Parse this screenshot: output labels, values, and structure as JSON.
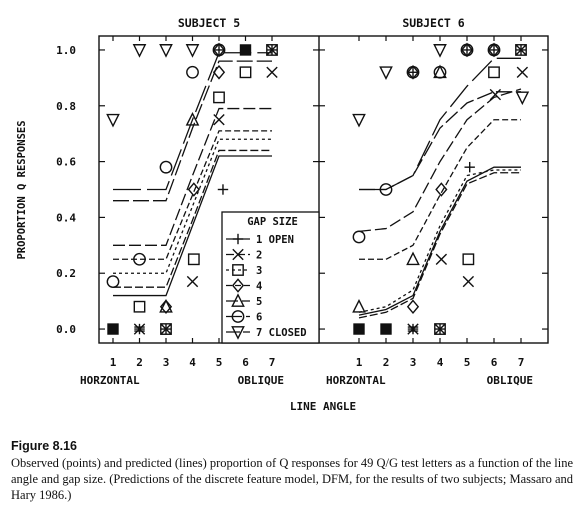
{
  "chart_data": {
    "type": "line",
    "xlabel": "LINE ANGLE",
    "ylabel": "PROPORTION Q RESPONSES",
    "x_ticks": [
      1,
      2,
      3,
      4,
      5,
      6,
      7
    ],
    "x_end_labels": {
      "left": "HORZONTAL",
      "right": "OBLIQUE"
    },
    "y_ticks": [
      "0.0",
      "0.2",
      "0.4",
      "0.6",
      "0.8",
      "1.0"
    ],
    "xlim": [
      0,
      8
    ],
    "ylim": [
      -0.05,
      1.05
    ],
    "legend": {
      "title": "GAP SIZE",
      "placement": "inside-bottom-right of left panel",
      "entries": [
        {
          "label": "1 OPEN",
          "marker": "plus",
          "dash": ""
        },
        {
          "label": "2",
          "marker": "x",
          "dash": "8,3"
        },
        {
          "label": "3",
          "marker": "square",
          "dash": "3,3"
        },
        {
          "label": "4",
          "marker": "diamond",
          "dash": "6,3"
        },
        {
          "label": "5",
          "marker": "triangle-up",
          "dash": "12,4"
        },
        {
          "label": "6",
          "marker": "circle",
          "dash": "16,4"
        },
        {
          "label": "7 CLOSED",
          "marker": "triangle-down",
          "dash": "28,6"
        }
      ]
    },
    "panels": [
      {
        "title": "SUBJECT 5",
        "predicted_lines": [
          {
            "gap": 1,
            "y": [
              0.12,
              0.12,
              0.12,
              0.37,
              0.62,
              0.62,
              0.62
            ]
          },
          {
            "gap": 2,
            "y": [
              0.15,
              0.15,
              0.15,
              0.39,
              0.64,
              0.64,
              0.64
            ]
          },
          {
            "gap": 3,
            "y": [
              0.2,
              0.2,
              0.2,
              0.44,
              0.68,
              0.68,
              0.68
            ]
          },
          {
            "gap": 4,
            "y": [
              0.25,
              0.25,
              0.25,
              0.48,
              0.71,
              0.71,
              0.71
            ]
          },
          {
            "gap": 5,
            "y": [
              0.3,
              0.3,
              0.3,
              0.55,
              0.79,
              0.79,
              0.79
            ]
          },
          {
            "gap": 6,
            "y": [
              0.46,
              0.46,
              0.46,
              0.72,
              0.96,
              0.96,
              0.96
            ]
          },
          {
            "gap": 7,
            "y": [
              0.5,
              0.5,
              0.5,
              0.75,
              0.99,
              0.99,
              0.99
            ]
          }
        ],
        "observed_points": [
          {
            "gap": 1,
            "x": 5.15,
            "y": 0.5
          },
          {
            "gap": 2,
            "x": 4.0,
            "y": 0.17
          },
          {
            "gap": 2,
            "x": 5.0,
            "y": 0.75
          },
          {
            "gap": 2,
            "x": 7.0,
            "y": 0.92
          },
          {
            "gap": 3,
            "x": 2.0,
            "y": 0.08
          },
          {
            "gap": 3,
            "x": 4.05,
            "y": 0.25
          },
          {
            "gap": 3,
            "x": 5.0,
            "y": 0.83
          },
          {
            "gap": 3,
            "x": 6.0,
            "y": 0.92
          },
          {
            "gap": 4,
            "x": 3.0,
            "y": 0.08
          },
          {
            "gap": 4,
            "x": 4.05,
            "y": 0.5
          },
          {
            "gap": 4,
            "x": 5.0,
            "y": 0.92
          },
          {
            "gap": 5,
            "x": 3.0,
            "y": 0.08
          },
          {
            "gap": 5,
            "x": 4.0,
            "y": 0.75
          },
          {
            "gap": 6,
            "x": 1.0,
            "y": 0.17
          },
          {
            "gap": 6,
            "x": 2.0,
            "y": 0.25
          },
          {
            "gap": 6,
            "x": 3.0,
            "y": 0.58
          },
          {
            "gap": 6,
            "x": 4.0,
            "y": 0.92
          },
          {
            "gap": 7,
            "x": 1.0,
            "y": 0.75
          },
          {
            "gap": 7,
            "x": 2.0,
            "y": 1.0
          },
          {
            "gap": 7,
            "x": 3.0,
            "y": 1.0
          },
          {
            "gap": 7,
            "x": 4.0,
            "y": 1.0
          }
        ],
        "overlap_points": [
          {
            "x": 1.0,
            "y": 0.0,
            "style": "filled-square"
          },
          {
            "x": 2.0,
            "y": 0.0,
            "style": "overlap-x"
          },
          {
            "x": 3.0,
            "y": 0.0,
            "style": "overlap-cross"
          },
          {
            "x": 5.0,
            "y": 1.0,
            "style": "overlap-circle"
          },
          {
            "x": 6.0,
            "y": 1.0,
            "style": "filled-square"
          },
          {
            "x": 7.0,
            "y": 1.0,
            "style": "overlap-square"
          }
        ]
      },
      {
        "title": "SUBJECT 6",
        "predicted_lines": [
          {
            "gap": 1,
            "y": [
              0.05,
              0.07,
              0.12,
              0.35,
              0.53,
              0.58,
              0.58
            ]
          },
          {
            "gap": 2,
            "y": [
              0.04,
              0.06,
              0.11,
              0.34,
              0.52,
              0.56,
              0.56
            ]
          },
          {
            "gap": 3,
            "y": [
              0.06,
              0.08,
              0.14,
              0.37,
              0.55,
              0.57,
              0.57
            ]
          },
          {
            "gap": 4,
            "y": [
              0.25,
              0.25,
              0.3,
              0.48,
              0.65,
              0.75,
              0.75
            ]
          },
          {
            "gap": 5,
            "y": [
              0.35,
              0.36,
              0.42,
              0.6,
              0.75,
              0.83,
              0.86
            ]
          },
          {
            "gap": 6,
            "y": [
              0.5,
              0.5,
              0.55,
              0.72,
              0.81,
              0.85,
              0.85
            ]
          },
          {
            "gap": 7,
            "y": [
              0.5,
              0.5,
              0.55,
              0.75,
              0.87,
              0.97,
              0.97
            ]
          }
        ],
        "observed_points": [
          {
            "gap": 1,
            "x": 5.1,
            "y": 0.58
          },
          {
            "gap": 2,
            "x": 4.05,
            "y": 0.25
          },
          {
            "gap": 2,
            "x": 5.05,
            "y": 0.17
          },
          {
            "gap": 2,
            "x": 6.05,
            "y": 0.84
          },
          {
            "gap": 2,
            "x": 7.05,
            "y": 0.92
          },
          {
            "gap": 3,
            "x": 5.05,
            "y": 0.25
          },
          {
            "gap": 3,
            "x": 6.0,
            "y": 0.92
          },
          {
            "gap": 4,
            "x": 3.0,
            "y": 0.08
          },
          {
            "gap": 4,
            "x": 4.05,
            "y": 0.5
          },
          {
            "gap": 5,
            "x": 1.0,
            "y": 0.08
          },
          {
            "gap": 5,
            "x": 3.0,
            "y": 0.25
          },
          {
            "gap": 6,
            "x": 1.0,
            "y": 0.33
          },
          {
            "gap": 6,
            "x": 2.0,
            "y": 0.5
          },
          {
            "gap": 7,
            "x": 1.0,
            "y": 0.75
          },
          {
            "gap": 7,
            "x": 7.05,
            "y": 0.83
          },
          {
            "gap": 7,
            "x": 2.0,
            "y": 0.92
          },
          {
            "gap": 7,
            "x": 4.0,
            "y": 1.0
          }
        ],
        "overlap_points": [
          {
            "x": 1.0,
            "y": 0.0,
            "style": "filled-square"
          },
          {
            "x": 2.0,
            "y": 0.0,
            "style": "filled-square"
          },
          {
            "x": 3.0,
            "y": 0.0,
            "style": "overlap-x"
          },
          {
            "x": 4.0,
            "y": 0.0,
            "style": "overlap-cross"
          },
          {
            "x": 3.0,
            "y": 0.92,
            "style": "overlap-circle"
          },
          {
            "x": 4.0,
            "y": 0.92,
            "style": "overlap-triangle"
          },
          {
            "x": 5.0,
            "y": 1.0,
            "style": "overlap-circle"
          },
          {
            "x": 6.0,
            "y": 1.0,
            "style": "overlap-circle"
          },
          {
            "x": 7.0,
            "y": 1.0,
            "style": "overlap-square"
          }
        ]
      }
    ]
  },
  "caption": {
    "title": "Figure 8.16",
    "text": "Observed (points) and predicted (lines) proportion of Q responses for 49 Q/G test letters as a function of the line angle and gap size. (Predictions of the discrete feature model, DFM, for the results of two subjects; Massaro and Hary 1986.)"
  }
}
